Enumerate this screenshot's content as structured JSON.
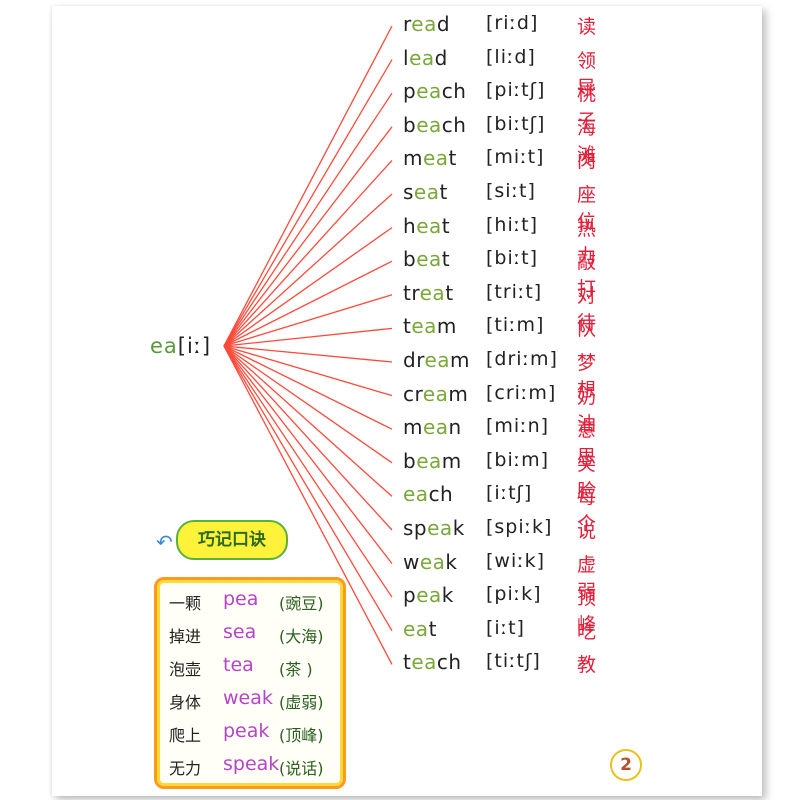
{
  "root": {
    "prefix": "ea",
    "ipa": "[iː]"
  },
  "words": [
    {
      "pre": "r",
      "hl": "ea",
      "post": "d",
      "ipa": "[riːd]",
      "zh": "读"
    },
    {
      "pre": "l",
      "hl": "ea",
      "post": "d",
      "ipa": "[liːd]",
      "zh": "领导"
    },
    {
      "pre": "p",
      "hl": "ea",
      "post": "ch",
      "ipa": "[piːtʃ]",
      "zh": "桃子"
    },
    {
      "pre": "b",
      "hl": "ea",
      "post": "ch",
      "ipa": "[biːtʃ]",
      "zh": "海滩"
    },
    {
      "pre": "m",
      "hl": "ea",
      "post": "t",
      "ipa": "[miːt]",
      "zh": "肉"
    },
    {
      "pre": "s",
      "hl": "ea",
      "post": "t",
      "ipa": "[siːt]",
      "zh": "座位"
    },
    {
      "pre": "h",
      "hl": "ea",
      "post": "t",
      "ipa": "[hiːt]",
      "zh": "热力"
    },
    {
      "pre": "b",
      "hl": "ea",
      "post": "t",
      "ipa": "[biːt]",
      "zh": "敲打"
    },
    {
      "pre": "tr",
      "hl": "ea",
      "post": "t",
      "ipa": "[triːt]",
      "zh": "对待"
    },
    {
      "pre": "t",
      "hl": "ea",
      "post": "m",
      "ipa": "[tiːm]",
      "zh": "队"
    },
    {
      "pre": "dr",
      "hl": "ea",
      "post": "m",
      "ipa": "[driːm]",
      "zh": "梦想"
    },
    {
      "pre": "cr",
      "hl": "ea",
      "post": "m",
      "ipa": "[criːm]",
      "zh": "奶油"
    },
    {
      "pre": "m",
      "hl": "ea",
      "post": "n",
      "ipa": "[miːn]",
      "zh": "意思"
    },
    {
      "pre": "b",
      "hl": "ea",
      "post": "m",
      "ipa": "[biːm]",
      "zh": "笑脸"
    },
    {
      "pre": "",
      "hl": "ea",
      "post": "ch",
      "ipa": "[iːtʃ]",
      "zh": "每个"
    },
    {
      "pre": "sp",
      "hl": "ea",
      "post": "k",
      "ipa": "[spiːk]",
      "zh": "说"
    },
    {
      "pre": "w",
      "hl": "ea",
      "post": "k",
      "ipa": "[wiːk]",
      "zh": "虚弱"
    },
    {
      "pre": "p",
      "hl": "ea",
      "post": "k",
      "ipa": "[piːk]",
      "zh": "顶峰"
    },
    {
      "pre": "",
      "hl": "ea",
      "post": "t",
      "ipa": "[iːt]",
      "zh": "吃"
    },
    {
      "pre": "t",
      "hl": "ea",
      "post": "ch",
      "ipa": "[tiːtʃ]",
      "zh": "教"
    }
  ],
  "tip": {
    "title": "巧记口诀",
    "rows": [
      {
        "zh": "一颗",
        "en": "pea",
        "note": "(豌豆)"
      },
      {
        "zh": "掉进",
        "en": "sea",
        "note": "(大海)"
      },
      {
        "zh": "泡壶",
        "en": "tea",
        "note": "(茶 )"
      },
      {
        "zh": "身体",
        "en": "weak",
        "note": "(虚弱)"
      },
      {
        "zh": "爬上",
        "en": "peak",
        "note": "(顶峰)"
      },
      {
        "zh": "无力",
        "en": "speak",
        "note": "(说话)"
      }
    ]
  },
  "page_number": "2",
  "colors": {
    "lines": "#ff4a3a",
    "word": "#222222",
    "highlight": "#7aa83a",
    "chinese": "#e0203a",
    "tip_en": "#b544c8"
  }
}
